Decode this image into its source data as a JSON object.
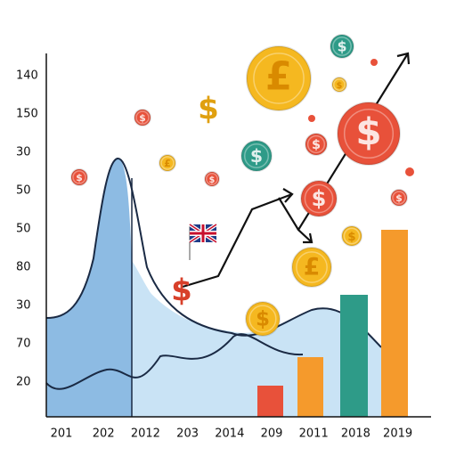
{
  "y_axis_labels": [
    "140",
    "150",
    "30",
    "50",
    "50",
    "80",
    "30",
    "70",
    "20"
  ],
  "x_axis_labels": [
    "201",
    "202",
    "2012",
    "203",
    "2014",
    "209",
    "2011",
    "2018",
    "2019"
  ],
  "coins": [
    "£",
    "$",
    "$",
    "$",
    "$",
    "$",
    "£",
    "$",
    "$",
    "$",
    "$",
    "$",
    "$",
    "£",
    "$",
    "$",
    "$"
  ]
}
